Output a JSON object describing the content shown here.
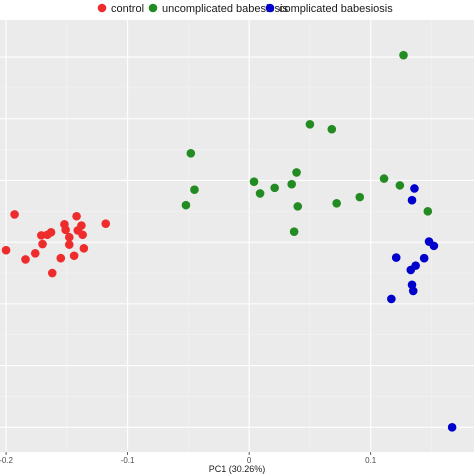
{
  "chart_data": {
    "type": "scatter",
    "title": "",
    "xlabel": "PC1 (30.26%)",
    "ylabel": "",
    "xlim": [
      -0.205,
      0.185
    ],
    "ylim": [
      -0.34,
      0.36
    ],
    "x_ticks": [
      -0.2,
      -0.1,
      0.0,
      0.1
    ],
    "x_tick_labels": [
      "-0.2",
      "-0.1",
      "0",
      "0.1"
    ],
    "y_gridlines": [
      -0.3,
      -0.2,
      -0.1,
      0.0,
      0.1,
      0.2,
      0.3
    ],
    "grid": true,
    "background": "#ebebeb",
    "legend_position": "top",
    "series": [
      {
        "name": "control",
        "color": "#ee2c2c",
        "points": [
          {
            "x": -0.193,
            "y": 0.045
          },
          {
            "x": -0.2,
            "y": -0.013
          },
          {
            "x": -0.184,
            "y": -0.028
          },
          {
            "x": -0.176,
            "y": -0.018
          },
          {
            "x": -0.171,
            "y": 0.011
          },
          {
            "x": -0.17,
            "y": -0.003
          },
          {
            "x": -0.166,
            "y": 0.012
          },
          {
            "x": -0.163,
            "y": 0.016
          },
          {
            "x": -0.162,
            "y": -0.05
          },
          {
            "x": -0.155,
            "y": -0.026
          },
          {
            "x": -0.152,
            "y": 0.029
          },
          {
            "x": -0.151,
            "y": 0.02
          },
          {
            "x": -0.148,
            "y": -0.004
          },
          {
            "x": -0.148,
            "y": 0.008
          },
          {
            "x": -0.144,
            "y": -0.022
          },
          {
            "x": -0.142,
            "y": 0.042
          },
          {
            "x": -0.141,
            "y": 0.019
          },
          {
            "x": -0.138,
            "y": 0.027
          },
          {
            "x": -0.137,
            "y": 0.012
          },
          {
            "x": -0.136,
            "y": -0.01
          },
          {
            "x": -0.118,
            "y": 0.03
          }
        ]
      },
      {
        "name": "uncomplicated babesiosis",
        "color": "#228b22",
        "points": [
          {
            "x": -0.048,
            "y": 0.144
          },
          {
            "x": -0.045,
            "y": 0.085
          },
          {
            "x": -0.052,
            "y": 0.06
          },
          {
            "x": 0.004,
            "y": 0.098
          },
          {
            "x": 0.009,
            "y": 0.079
          },
          {
            "x": 0.021,
            "y": 0.088
          },
          {
            "x": 0.035,
            "y": 0.094
          },
          {
            "x": 0.039,
            "y": 0.113
          },
          {
            "x": 0.04,
            "y": 0.058
          },
          {
            "x": 0.037,
            "y": 0.017
          },
          {
            "x": 0.05,
            "y": 0.191
          },
          {
            "x": 0.068,
            "y": 0.183
          },
          {
            "x": 0.072,
            "y": 0.063
          },
          {
            "x": 0.091,
            "y": 0.073
          },
          {
            "x": 0.111,
            "y": 0.103
          },
          {
            "x": 0.124,
            "y": 0.092
          },
          {
            "x": 0.127,
            "y": 0.303
          },
          {
            "x": 0.147,
            "y": 0.05
          }
        ]
      },
      {
        "name": "complicated babesiosis",
        "color": "#0000cd",
        "points": [
          {
            "x": 0.136,
            "y": 0.087
          },
          {
            "x": 0.134,
            "y": 0.068
          },
          {
            "x": 0.121,
            "y": -0.025
          },
          {
            "x": 0.117,
            "y": -0.092
          },
          {
            "x": 0.133,
            "y": -0.045
          },
          {
            "x": 0.134,
            "y": -0.069
          },
          {
            "x": 0.135,
            "y": -0.079
          },
          {
            "x": 0.144,
            "y": -0.026
          },
          {
            "x": 0.148,
            "y": 0.001
          },
          {
            "x": 0.152,
            "y": -0.006
          },
          {
            "x": 0.137,
            "y": -0.038
          },
          {
            "x": 0.167,
            "y": -0.3
          }
        ]
      }
    ]
  }
}
